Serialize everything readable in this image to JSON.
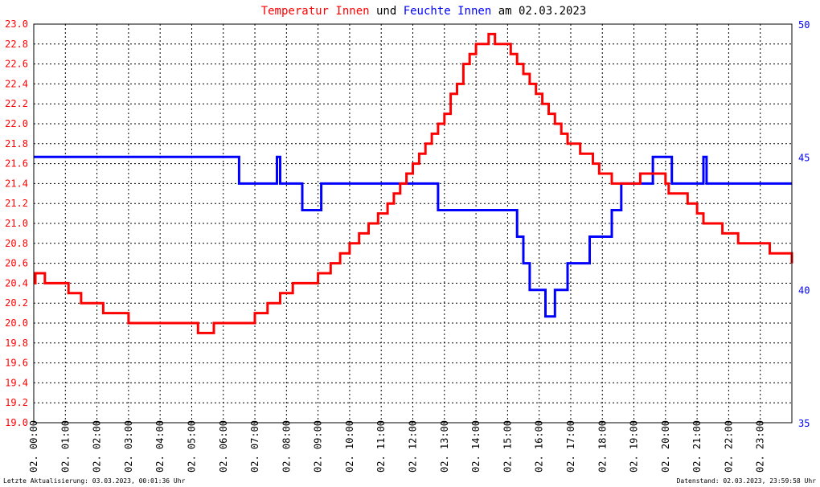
{
  "title": {
    "part1": "Temperatur Innen",
    "part2": " und ",
    "part3": "Feuchte Innen",
    "part4": " am 02.03.2023"
  },
  "footer": {
    "left": "Letzte Aktualisierung: 03.03.2023, 00:01:36 Uhr",
    "right": "Datenstand: 02.03.2023, 23:59:58 Uhr"
  },
  "colors": {
    "temperature": "#ff0000",
    "humidity": "#0000ff",
    "left_axis_labels": "#ff0000",
    "right_axis_labels": "#0000ff",
    "grid": "#000000",
    "background": "#ffffff"
  },
  "chart_data": {
    "type": "line",
    "grid": true,
    "xlim": [
      0,
      24
    ],
    "ylim_left": [
      19.0,
      23.0
    ],
    "ylim_right": [
      35,
      50
    ],
    "left_ticks": [
      "19.0",
      "19.2",
      "19.4",
      "19.6",
      "19.8",
      "20.0",
      "20.2",
      "20.4",
      "20.6",
      "20.8",
      "21.0",
      "21.2",
      "21.4",
      "21.6",
      "21.8",
      "22.0",
      "22.2",
      "22.4",
      "22.6",
      "22.8",
      "23.0"
    ],
    "right_ticks": [
      "35",
      "40",
      "45",
      "50"
    ],
    "x_ticks": [
      "02. 00:00",
      "02. 01:00",
      "02. 02:00",
      "02. 03:00",
      "02. 04:00",
      "02. 05:00",
      "02. 06:00",
      "02. 07:00",
      "02. 08:00",
      "02. 09:00",
      "02. 10:00",
      "02. 11:00",
      "02. 12:00",
      "02. 13:00",
      "02. 14:00",
      "02. 15:00",
      "02. 16:00",
      "02. 17:00",
      "02. 18:00",
      "02. 19:00",
      "02. 20:00",
      "02. 21:00",
      "02. 22:00",
      "02. 23:00"
    ],
    "series": [
      {
        "name": "Temperatur Innen",
        "axis": "left",
        "x": [
          0.0,
          0.05,
          0.1,
          0.35,
          0.4,
          1.1,
          1.5,
          2.2,
          3.0,
          3.5,
          4.0,
          4.7,
          5.0,
          5.2,
          5.7,
          6.2,
          6.6,
          7.0,
          7.4,
          7.8,
          8.2,
          8.6,
          9.0,
          9.4,
          9.7,
          10.0,
          10.3,
          10.6,
          10.9,
          11.2,
          11.4,
          11.6,
          11.8,
          12.0,
          12.2,
          12.4,
          12.6,
          12.8,
          13.0,
          13.2,
          13.4,
          13.6,
          13.8,
          14.0,
          14.2,
          14.4,
          14.6,
          14.8,
          15.0,
          15.1,
          15.3,
          15.5,
          15.7,
          15.9,
          16.1,
          16.3,
          16.5,
          16.7,
          16.9,
          17.1,
          17.3,
          17.5,
          17.7,
          17.9,
          18.1,
          18.3,
          18.5,
          18.7,
          18.9,
          19.2,
          19.4,
          19.6,
          19.8,
          20.0,
          20.1,
          20.4,
          20.7,
          21.0,
          21.2,
          21.5,
          21.8,
          22.0,
          22.3,
          22.6,
          23.0,
          23.3,
          23.6,
          23.9,
          24.0
        ],
        "y": [
          20.4,
          20.5,
          20.5,
          20.4,
          20.4,
          20.3,
          20.2,
          20.1,
          20.0,
          20.0,
          20.0,
          20.0,
          20.0,
          19.9,
          20.0,
          20.0,
          20.0,
          20.1,
          20.2,
          20.3,
          20.4,
          20.4,
          20.5,
          20.6,
          20.7,
          20.8,
          20.9,
          21.0,
          21.1,
          21.2,
          21.3,
          21.4,
          21.5,
          21.6,
          21.7,
          21.8,
          21.9,
          22.0,
          22.1,
          22.3,
          22.4,
          22.6,
          22.7,
          22.8,
          22.8,
          22.9,
          22.8,
          22.8,
          22.8,
          22.7,
          22.6,
          22.5,
          22.4,
          22.3,
          22.2,
          22.1,
          22.0,
          21.9,
          21.8,
          21.8,
          21.7,
          21.7,
          21.6,
          21.5,
          21.5,
          21.4,
          21.4,
          21.4,
          21.4,
          21.5,
          21.5,
          21.5,
          21.5,
          21.4,
          21.3,
          21.3,
          21.2,
          21.1,
          21.0,
          21.0,
          20.9,
          20.9,
          20.8,
          20.8,
          20.8,
          20.7,
          20.7,
          20.7,
          20.6
        ]
      },
      {
        "name": "Feuchte Innen",
        "axis": "right",
        "x": [
          0.0,
          6.4,
          6.5,
          7.6,
          7.7,
          7.8,
          8.5,
          9.0,
          9.1,
          12.8,
          15.3,
          15.5,
          15.7,
          16.2,
          16.5,
          16.9,
          17.1,
          17.6,
          17.8,
          18.3,
          18.6,
          19.4,
          19.6,
          19.9,
          20.2,
          21.2,
          21.3,
          22.0,
          24.0
        ],
        "y": [
          45,
          45,
          44,
          44,
          45,
          44,
          43,
          43,
          44,
          43,
          42,
          41,
          40,
          39,
          40,
          41,
          41,
          42,
          42,
          43,
          44,
          44,
          45,
          45,
          44,
          45,
          44,
          44,
          44
        ]
      }
    ]
  }
}
